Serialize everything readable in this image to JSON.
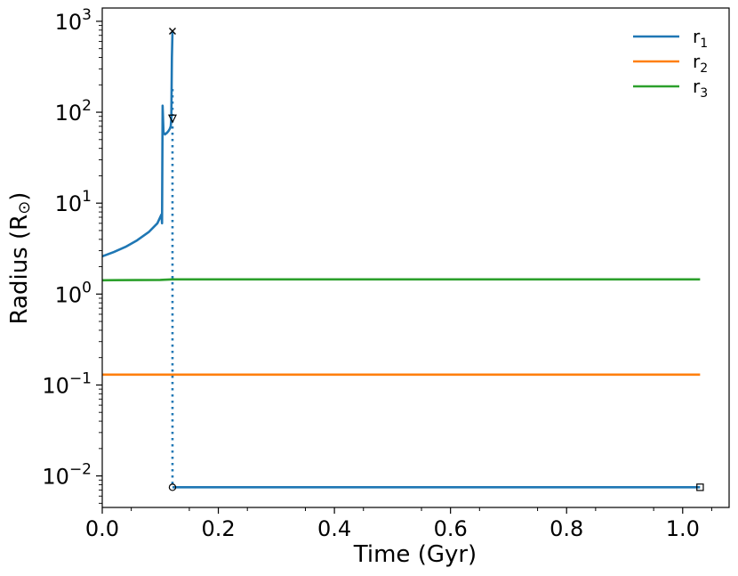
{
  "chart_data": {
    "type": "line",
    "title": "",
    "xlabel": "Time (Gyr)",
    "ylabel_main": "Radius (R",
    "ylabel_sub": "⊙",
    "ylabel_end": ")",
    "yscale": "log",
    "xlim": [
      0.0,
      1.08
    ],
    "ylim": [
      0.0045,
      1400
    ],
    "grid": false,
    "legend_position": "top-right",
    "x_ticks": [
      {
        "value": 0.0,
        "label": "0.0"
      },
      {
        "value": 0.2,
        "label": "0.2"
      },
      {
        "value": 0.4,
        "label": "0.4"
      },
      {
        "value": 0.6,
        "label": "0.6"
      },
      {
        "value": 0.8,
        "label": "0.8"
      },
      {
        "value": 1.0,
        "label": "1.0"
      }
    ],
    "y_ticks": [
      {
        "value": 0.01,
        "base": "10",
        "exp": "−2"
      },
      {
        "value": 0.1,
        "base": "10",
        "exp": "−1"
      },
      {
        "value": 1,
        "base": "10",
        "exp": "0"
      },
      {
        "value": 10,
        "base": "10",
        "exp": "1"
      },
      {
        "value": 100,
        "base": "10",
        "exp": "2"
      },
      {
        "value": 1000,
        "base": "10",
        "exp": "3"
      }
    ],
    "series": [
      {
        "name": "r",
        "name_sub": "1",
        "color": "#1f77b4",
        "segments": [
          [
            [
              0.0,
              2.6
            ],
            [
              0.02,
              2.9
            ],
            [
              0.04,
              3.3
            ],
            [
              0.06,
              3.9
            ],
            [
              0.08,
              4.8
            ],
            [
              0.095,
              6.0
            ],
            [
              0.102,
              7.5
            ],
            [
              0.103,
              6.0
            ],
            [
              0.104,
              118
            ],
            [
              0.1055,
              60
            ],
            [
              0.108,
              57
            ],
            [
              0.111,
              59
            ],
            [
              0.114,
              62
            ],
            [
              0.1165,
              66
            ],
            [
              0.118,
              70
            ],
            [
              0.119,
              85
            ],
            [
              0.12,
              400
            ],
            [
              0.121,
              780
            ]
          ],
          [
            [
              0.121,
              0.0075
            ],
            [
              1.03,
              0.0075
            ]
          ]
        ],
        "dotted_transition": [
          [
            0.121,
            180
          ],
          [
            0.121,
            0.0075
          ]
        ]
      },
      {
        "name": "r",
        "name_sub": "2",
        "color": "#ff7f0e",
        "segments": [
          [
            [
              0.0,
              0.13
            ],
            [
              1.03,
              0.13
            ]
          ]
        ]
      },
      {
        "name": "r",
        "name_sub": "3",
        "color": "#2ca02c",
        "segments": [
          [
            [
              0.0,
              1.42
            ],
            [
              0.1,
              1.43
            ],
            [
              0.121,
              1.45
            ],
            [
              1.03,
              1.45
            ]
          ]
        ]
      }
    ],
    "markers": [
      {
        "symbol": "x",
        "x": 0.121,
        "y": 780
      },
      {
        "symbol": "triangle-down",
        "x": 0.121,
        "y": 85
      },
      {
        "symbol": "circle",
        "x": 0.121,
        "y": 0.0075
      },
      {
        "symbol": "square",
        "x": 1.03,
        "y": 0.0075
      }
    ]
  }
}
